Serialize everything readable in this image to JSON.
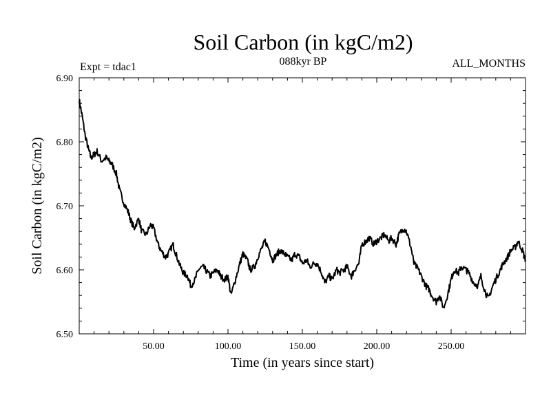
{
  "chart_data": {
    "type": "line",
    "title": "Soil Carbon (in kgC/m2)",
    "subtitle": "088kyr BP",
    "left_label": "Expt = tdac1",
    "right_label": "ALL_MONTHS",
    "xlabel": "Time (in years since start)",
    "ylabel": "Soil Carbon (in kgC/m2)",
    "xlim": [
      0,
      300
    ],
    "ylim": [
      6.5,
      6.9
    ],
    "x_ticks": [
      50,
      100,
      150,
      200,
      250
    ],
    "x_tick_labels": [
      "50.00",
      "100.00",
      "150.00",
      "200.00",
      "250.00"
    ],
    "y_ticks": [
      6.5,
      6.6,
      6.7,
      6.8,
      6.9
    ],
    "y_tick_labels": [
      "6.50",
      "6.60",
      "6.70",
      "6.80",
      "6.90"
    ],
    "line_color": "#000000",
    "series": [
      {
        "name": "Soil Carbon",
        "x": [
          0,
          2,
          4,
          6,
          8,
          10,
          12,
          15,
          18,
          20,
          22,
          25,
          27,
          30,
          33,
          35,
          37,
          40,
          42,
          45,
          48,
          50,
          53,
          55,
          58,
          60,
          63,
          65,
          68,
          70,
          73,
          75,
          78,
          80,
          83,
          85,
          88,
          90,
          93,
          95,
          98,
          100,
          102,
          105,
          108,
          110,
          113,
          115,
          118,
          120,
          123,
          125,
          128,
          130,
          133,
          135,
          138,
          140,
          143,
          145,
          148,
          150,
          153,
          155,
          158,
          160,
          163,
          165,
          168,
          170,
          173,
          175,
          178,
          180,
          183,
          185,
          188,
          190,
          193,
          195,
          198,
          200,
          203,
          205,
          208,
          210,
          213,
          215,
          218,
          220,
          223,
          225,
          228,
          230,
          233,
          235,
          237,
          240,
          242,
          245,
          248,
          250,
          252,
          255,
          257,
          260,
          262,
          265,
          268,
          270,
          273,
          275,
          278,
          280,
          283,
          285,
          288,
          290,
          293,
          295,
          298,
          300
        ],
        "values": [
          6.865,
          6.84,
          6.81,
          6.79,
          6.775,
          6.78,
          6.785,
          6.77,
          6.775,
          6.77,
          6.765,
          6.75,
          6.725,
          6.705,
          6.69,
          6.675,
          6.665,
          6.68,
          6.66,
          6.655,
          6.67,
          6.665,
          6.64,
          6.63,
          6.62,
          6.625,
          6.64,
          6.625,
          6.605,
          6.595,
          6.59,
          6.575,
          6.585,
          6.6,
          6.605,
          6.6,
          6.59,
          6.595,
          6.6,
          6.59,
          6.585,
          6.59,
          6.56,
          6.585,
          6.61,
          6.625,
          6.615,
          6.6,
          6.605,
          6.62,
          6.635,
          6.645,
          6.63,
          6.615,
          6.625,
          6.63,
          6.625,
          6.62,
          6.615,
          6.625,
          6.62,
          6.61,
          6.615,
          6.605,
          6.61,
          6.61,
          6.595,
          6.58,
          6.59,
          6.585,
          6.6,
          6.595,
          6.6,
          6.605,
          6.59,
          6.6,
          6.61,
          6.64,
          6.645,
          6.65,
          6.64,
          6.645,
          6.65,
          6.655,
          6.645,
          6.65,
          6.64,
          6.655,
          6.665,
          6.66,
          6.635,
          6.61,
          6.6,
          6.59,
          6.575,
          6.57,
          6.56,
          6.55,
          6.56,
          6.54,
          6.565,
          6.585,
          6.6,
          6.595,
          6.605,
          6.6,
          6.595,
          6.58,
          6.575,
          6.59,
          6.565,
          6.555,
          6.575,
          6.585,
          6.6,
          6.61,
          6.62,
          6.63,
          6.635,
          6.645,
          6.63,
          6.615
        ]
      }
    ]
  }
}
